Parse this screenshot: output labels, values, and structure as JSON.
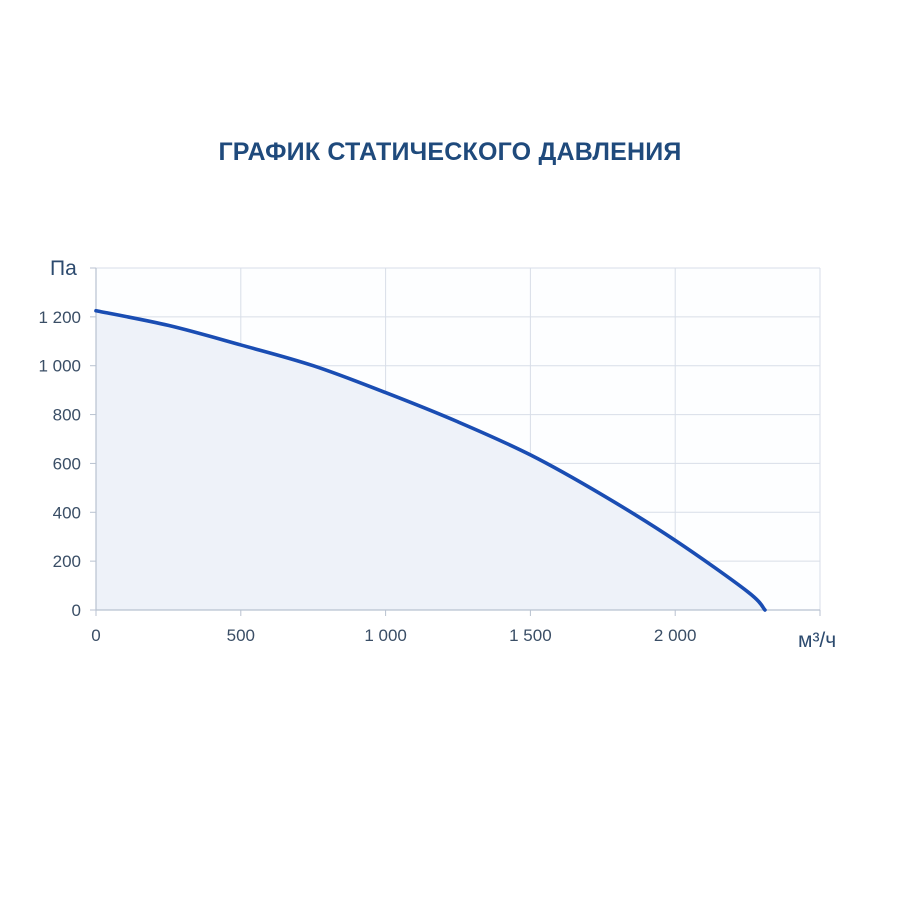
{
  "chart_data": {
    "type": "area",
    "title": "ГРАФИК СТАТИЧЕСКОГО ДАВЛЕНИЯ",
    "xlabel": "м³/ч",
    "ylabel": "Па",
    "xlim": [
      0,
      2500
    ],
    "ylim": [
      0,
      1400
    ],
    "x_ticks": [
      0,
      500,
      1000,
      1500,
      2000
    ],
    "x_tick_labels": [
      "0",
      "500",
      "1 000",
      "1 500",
      "2 000"
    ],
    "y_ticks": [
      0,
      200,
      400,
      600,
      800,
      1000,
      1200
    ],
    "y_tick_labels": [
      "0",
      "200",
      "400",
      "600",
      "800",
      "1 000",
      "1 200"
    ],
    "grid": true,
    "series": [
      {
        "x": [
          0,
          250,
          500,
          750,
          1000,
          1250,
          1500,
          1750,
          2000,
          2250,
          2310
        ],
        "y": [
          1225,
          1165,
          1085,
          1000,
          890,
          770,
          635,
          470,
          285,
          75,
          0
        ]
      }
    ],
    "colors": {
      "line": "#1a4db3",
      "fill": "#eef2f9",
      "grid": "#d8dee8",
      "axis": "#b8c2d0"
    }
  }
}
